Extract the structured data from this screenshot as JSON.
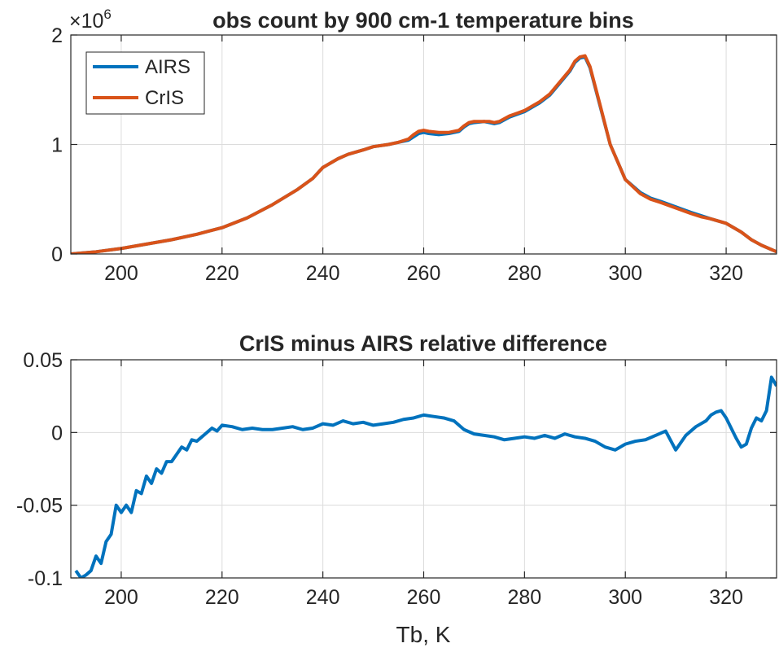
{
  "chart_data": [
    {
      "type": "line",
      "title": "obs count by 900 cm-1 temperature bins",
      "y_exponent_label": "×10",
      "y_exponent": "6",
      "xlim": [
        190,
        330
      ],
      "ylim": [
        0,
        2
      ],
      "xticks": [
        "200",
        "220",
        "240",
        "260",
        "280",
        "300",
        "320"
      ],
      "yticks": [
        "0",
        "1",
        "2"
      ],
      "grid": true,
      "legend_placement": "top-left",
      "series": [
        {
          "name": "AIRS",
          "color": "#0072BD",
          "x": [
            190,
            195,
            200,
            205,
            210,
            215,
            220,
            225,
            230,
            235,
            238,
            240,
            243,
            245,
            248,
            250,
            253,
            255,
            257,
            258,
            259,
            260,
            261,
            263,
            265,
            267,
            268,
            269,
            270,
            272,
            273,
            274,
            275,
            277,
            280,
            283,
            285,
            287,
            289,
            290,
            291,
            292,
            293,
            295,
            297,
            300,
            303,
            305,
            307,
            310,
            313,
            315,
            317,
            320,
            323,
            325,
            327,
            330
          ],
          "y": [
            0.0,
            0.02,
            0.05,
            0.09,
            0.13,
            0.18,
            0.24,
            0.33,
            0.45,
            0.59,
            0.69,
            0.79,
            0.87,
            0.91,
            0.95,
            0.98,
            1.0,
            1.02,
            1.04,
            1.07,
            1.1,
            1.11,
            1.1,
            1.09,
            1.1,
            1.12,
            1.16,
            1.19,
            1.2,
            1.21,
            1.2,
            1.19,
            1.2,
            1.25,
            1.3,
            1.38,
            1.45,
            1.56,
            1.67,
            1.75,
            1.79,
            1.8,
            1.7,
            1.35,
            1.0,
            0.68,
            0.56,
            0.51,
            0.48,
            0.43,
            0.38,
            0.35,
            0.32,
            0.28,
            0.2,
            0.13,
            0.08,
            0.02
          ]
        },
        {
          "name": "CrIS",
          "color": "#D95319",
          "x": [
            190,
            195,
            200,
            205,
            210,
            215,
            220,
            225,
            230,
            235,
            238,
            240,
            243,
            245,
            248,
            250,
            253,
            255,
            257,
            258,
            259,
            260,
            261,
            263,
            265,
            267,
            268,
            269,
            270,
            272,
            273,
            274,
            275,
            277,
            280,
            283,
            285,
            287,
            289,
            290,
            291,
            292,
            293,
            295,
            297,
            300,
            303,
            305,
            307,
            310,
            313,
            315,
            317,
            320,
            323,
            325,
            327,
            330
          ],
          "y": [
            0.0,
            0.02,
            0.05,
            0.09,
            0.13,
            0.18,
            0.24,
            0.33,
            0.45,
            0.59,
            0.69,
            0.79,
            0.87,
            0.91,
            0.95,
            0.98,
            1.0,
            1.02,
            1.05,
            1.09,
            1.12,
            1.13,
            1.12,
            1.11,
            1.11,
            1.13,
            1.17,
            1.2,
            1.21,
            1.21,
            1.21,
            1.2,
            1.21,
            1.26,
            1.31,
            1.39,
            1.46,
            1.57,
            1.68,
            1.76,
            1.8,
            1.81,
            1.71,
            1.36,
            1.0,
            0.68,
            0.55,
            0.5,
            0.47,
            0.42,
            0.37,
            0.34,
            0.32,
            0.28,
            0.2,
            0.13,
            0.08,
            0.02
          ]
        }
      ]
    },
    {
      "type": "line",
      "title": "CrIS minus AIRS relative difference",
      "xlabel": "Tb, K",
      "xlim": [
        190,
        330
      ],
      "ylim": [
        -0.1,
        0.05
      ],
      "xticks": [
        "200",
        "220",
        "240",
        "260",
        "280",
        "300",
        "320"
      ],
      "yticks": [
        "0.05",
        "0",
        "-0.05",
        "-0.1"
      ],
      "grid": true,
      "series": [
        {
          "color": "#0072BD",
          "x": [
            191,
            192,
            193,
            194,
            195,
            196,
            197,
            198,
            199,
            200,
            201,
            202,
            203,
            204,
            205,
            206,
            207,
            208,
            209,
            210,
            211,
            212,
            213,
            214,
            215,
            216,
            217,
            218,
            219,
            220,
            222,
            224,
            226,
            228,
            230,
            232,
            234,
            236,
            238,
            240,
            242,
            244,
            246,
            248,
            250,
            252,
            254,
            256,
            258,
            260,
            262,
            264,
            266,
            268,
            270,
            272,
            274,
            276,
            278,
            280,
            282,
            284,
            286,
            288,
            290,
            292,
            294,
            296,
            298,
            300,
            302,
            304,
            306,
            308,
            310,
            312,
            314,
            316,
            317,
            318,
            319,
            320,
            321,
            322,
            323,
            324,
            325,
            326,
            327,
            328,
            329,
            330
          ],
          "y": [
            -0.095,
            -0.1,
            -0.098,
            -0.095,
            -0.085,
            -0.09,
            -0.075,
            -0.07,
            -0.05,
            -0.055,
            -0.05,
            -0.055,
            -0.04,
            -0.042,
            -0.03,
            -0.035,
            -0.025,
            -0.028,
            -0.02,
            -0.02,
            -0.015,
            -0.01,
            -0.012,
            -0.005,
            -0.006,
            -0.003,
            0.0,
            0.003,
            0.001,
            0.005,
            0.004,
            0.002,
            0.003,
            0.002,
            0.002,
            0.003,
            0.004,
            0.002,
            0.003,
            0.006,
            0.005,
            0.008,
            0.006,
            0.007,
            0.005,
            0.006,
            0.007,
            0.009,
            0.01,
            0.012,
            0.011,
            0.01,
            0.008,
            0.002,
            -0.001,
            -0.002,
            -0.003,
            -0.005,
            -0.004,
            -0.003,
            -0.004,
            -0.002,
            -0.004,
            -0.001,
            -0.003,
            -0.004,
            -0.006,
            -0.01,
            -0.012,
            -0.008,
            -0.006,
            -0.005,
            -0.002,
            0.001,
            -0.012,
            -0.002,
            0.004,
            0.008,
            0.012,
            0.014,
            0.015,
            0.01,
            0.003,
            -0.004,
            -0.01,
            -0.008,
            0.003,
            0.01,
            0.008,
            0.015,
            0.038,
            0.032
          ]
        }
      ]
    }
  ]
}
